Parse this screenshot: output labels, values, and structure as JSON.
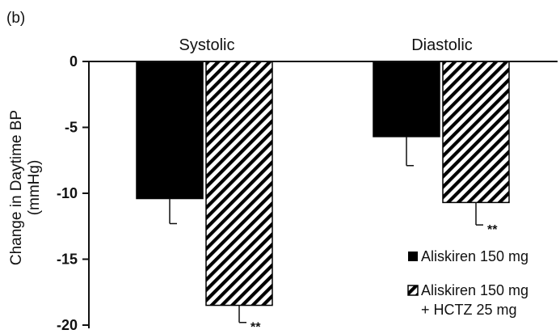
{
  "panel_label": "(b)",
  "chart_data": {
    "type": "bar",
    "categories": [
      "Systolic",
      "Diastolic"
    ],
    "series": [
      {
        "name": "Aliskiren 150 mg",
        "values": [
          -10.4,
          -5.7
        ],
        "error": [
          1.9,
          2.2
        ],
        "significance": [
          "",
          ""
        ],
        "pattern": "solid",
        "color": "#000000"
      },
      {
        "name_lines": [
          "Aliskiren 150 mg",
          "+ HCTZ 25 mg"
        ],
        "values": [
          -18.5,
          -10.7
        ],
        "error": [
          1.3,
          1.7
        ],
        "significance": [
          "**",
          "**"
        ],
        "pattern": "hatch",
        "color": "#000000"
      }
    ],
    "ylabel_lines": [
      "Change in Daytime BP",
      "(mmHg)"
    ],
    "ylim": [
      -20,
      0
    ],
    "yticks": [
      0,
      -5,
      -10,
      -15,
      -20
    ],
    "ytick_labels": [
      "0",
      "-5",
      "-10",
      "-15",
      "-20"
    ],
    "legend_position": "bottom-right",
    "grid": false
  }
}
